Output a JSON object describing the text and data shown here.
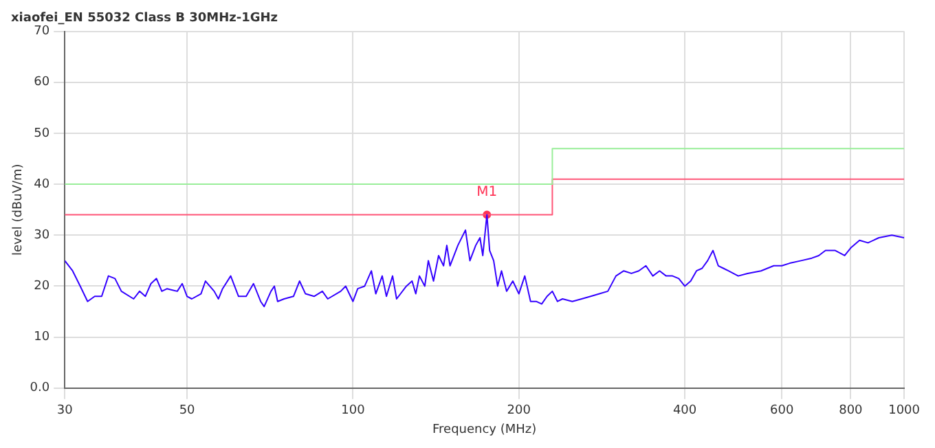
{
  "chart_data": {
    "type": "line",
    "title": "xiaofei_EN 55032 Class B 30MHz-1GHz",
    "xlabel": "Frequency (MHz)",
    "ylabel": "level (dBuV/m)",
    "xlim": [
      30,
      1000
    ],
    "xticks": [
      30,
      50,
      100,
      200,
      400,
      600,
      800,
      1000
    ],
    "ylim": [
      0,
      70
    ],
    "yticks": [
      {
        "value": 0,
        "label": "0.0"
      },
      10,
      20,
      30,
      40,
      50,
      60,
      70
    ],
    "log": "x",
    "grid": true,
    "legend": false,
    "marker": "none",
    "line_style": "solid",
    "series": [
      {
        "color": "#3300ff",
        "x": [
          30,
          31,
          32,
          33,
          34,
          35,
          36,
          37,
          38,
          40,
          41,
          42,
          43,
          44,
          45,
          46,
          48,
          49,
          50,
          51,
          53,
          54,
          56,
          57,
          58,
          60,
          62,
          64,
          66,
          68,
          69,
          71,
          72,
          73,
          75,
          78,
          80,
          82,
          85,
          88,
          90,
          95,
          97,
          100,
          102,
          105,
          108,
          110,
          113,
          115,
          118,
          120,
          125,
          128,
          130,
          132,
          135,
          137,
          140,
          143,
          146,
          148,
          150,
          155,
          160,
          163,
          167,
          170,
          172,
          175,
          177,
          180,
          183,
          186,
          190,
          195,
          200,
          205,
          210,
          215,
          220,
          225,
          230,
          235,
          240,
          250,
          260,
          270,
          280,
          290,
          300,
          310,
          320,
          330,
          340,
          350,
          360,
          370,
          380,
          390,
          400,
          410,
          420,
          430,
          440,
          450,
          460,
          470,
          480,
          500,
          520,
          550,
          580,
          600,
          620,
          650,
          680,
          700,
          720,
          750,
          780,
          800,
          830,
          860,
          900,
          950,
          1000
        ],
        "values": [
          25,
          23,
          20,
          17,
          18,
          18,
          22,
          21.5,
          19,
          17.5,
          19,
          18,
          20.5,
          21.5,
          19,
          19.5,
          19,
          20.5,
          18,
          17.5,
          18.5,
          21,
          19,
          17.5,
          19.5,
          22,
          18,
          18,
          20.5,
          17,
          16,
          19,
          20,
          17,
          17.5,
          18,
          21,
          18.5,
          18,
          19,
          17.5,
          19,
          20,
          17,
          19.5,
          20,
          23,
          18.5,
          22,
          18,
          22,
          17.5,
          20,
          21,
          18.5,
          22,
          20,
          25,
          21,
          26,
          24,
          28,
          24,
          28,
          31,
          25,
          28,
          29.5,
          26,
          34,
          27,
          25,
          20,
          23,
          19,
          21,
          18.5,
          22,
          17,
          17,
          16.5,
          18,
          19,
          17,
          17.5,
          17,
          17.5,
          18,
          18.5,
          19,
          22,
          23,
          22.5,
          23,
          24,
          22,
          23,
          22,
          22,
          21.5,
          20,
          21,
          23,
          23.5,
          25,
          27,
          24,
          23.5,
          23,
          22,
          22.5,
          23,
          24,
          24,
          24.5,
          25,
          25.5,
          26,
          27,
          27,
          26,
          27.5,
          29,
          28.5,
          29.5,
          30,
          29.5
        ]
      },
      {
        "color": "#99ee99",
        "x": [
          30,
          230,
          230,
          1000
        ],
        "values": [
          40,
          40,
          47,
          47
        ]
      },
      {
        "color": "#ff5577",
        "x": [
          30,
          230,
          230,
          1000
        ],
        "values": [
          34,
          34,
          41,
          41
        ]
      },
      {
        "name": "M1",
        "type": "scatter",
        "marker": "circle",
        "color": "#ff3355",
        "x": [
          175
        ],
        "values": [
          34
        ]
      }
    ]
  }
}
